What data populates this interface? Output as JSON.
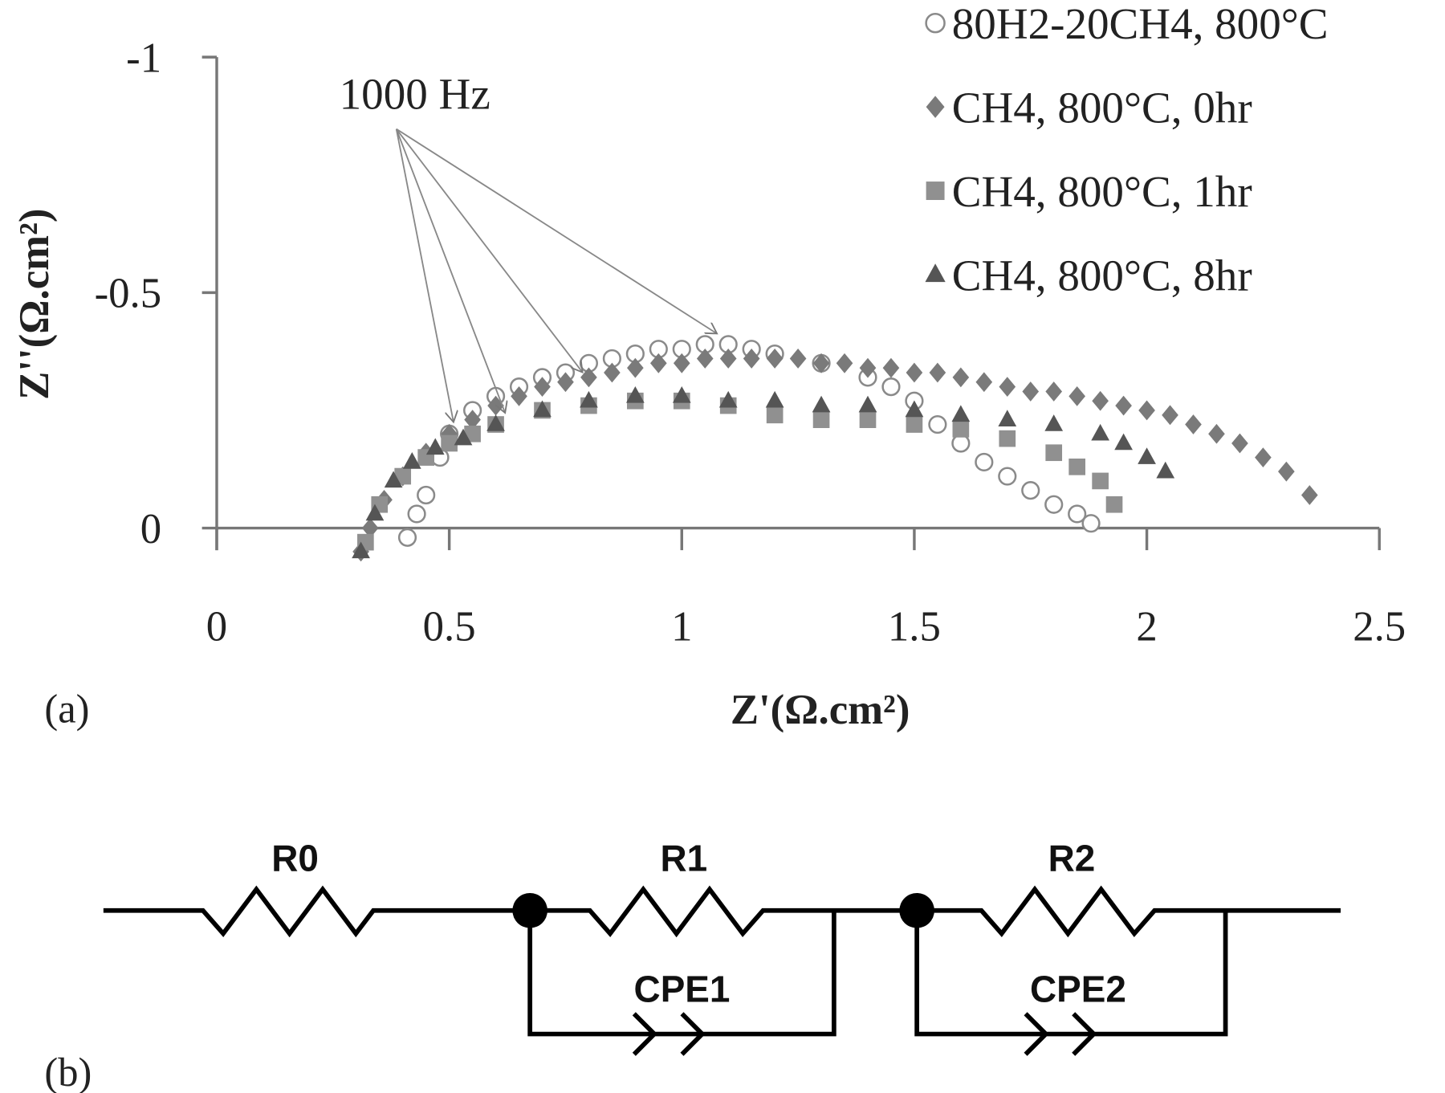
{
  "chart_data": {
    "type": "scatter",
    "x_label": "Z'(Ω.cm²)",
    "y_label": "Z''(Ω.cm²)",
    "panel_label": "(a)",
    "annotation": "1000 Hz",
    "xlim": [
      0,
      2.5
    ],
    "xticks": [
      0,
      0.5,
      1,
      1.5,
      2,
      2.5
    ],
    "ylim": [
      0,
      -1
    ],
    "yticks": [
      0,
      -0.5,
      -1
    ],
    "legend": "top-right",
    "series": [
      {
        "name": "80H2-20CH4, 800°C",
        "color": "#8a8a8a",
        "marker": "open-circle",
        "x": [
          0.41,
          0.43,
          0.45,
          0.48,
          0.5,
          0.55,
          0.6,
          0.65,
          0.7,
          0.75,
          0.8,
          0.85,
          0.9,
          0.95,
          1.0,
          1.05,
          1.1,
          1.15,
          1.2,
          1.3,
          1.4,
          1.45,
          1.5,
          1.55,
          1.6,
          1.65,
          1.7,
          1.75,
          1.8,
          1.85,
          1.88
        ],
        "values": [
          0.02,
          -0.03,
          -0.07,
          -0.15,
          -0.2,
          -0.25,
          -0.28,
          -0.3,
          -0.32,
          -0.33,
          -0.35,
          -0.36,
          -0.37,
          -0.38,
          -0.38,
          -0.39,
          -0.39,
          -0.38,
          -0.37,
          -0.35,
          -0.32,
          -0.3,
          -0.27,
          -0.22,
          -0.18,
          -0.14,
          -0.11,
          -0.08,
          -0.05,
          -0.03,
          -0.01
        ]
      },
      {
        "name": "CH4, 800°C, 0hr",
        "color": "#7a7a7a",
        "marker": "diamond",
        "x": [
          0.31,
          0.33,
          0.36,
          0.4,
          0.45,
          0.5,
          0.55,
          0.6,
          0.65,
          0.7,
          0.75,
          0.8,
          0.85,
          0.9,
          0.95,
          1.0,
          1.05,
          1.1,
          1.15,
          1.2,
          1.25,
          1.3,
          1.35,
          1.4,
          1.45,
          1.5,
          1.55,
          1.6,
          1.65,
          1.7,
          1.75,
          1.8,
          1.85,
          1.9,
          1.95,
          2.0,
          2.05,
          2.1,
          2.15,
          2.2,
          2.25,
          2.3,
          2.35
        ],
        "values": [
          0.05,
          0,
          -0.06,
          -0.11,
          -0.16,
          -0.2,
          -0.23,
          -0.26,
          -0.28,
          -0.3,
          -0.31,
          -0.32,
          -0.33,
          -0.34,
          -0.35,
          -0.35,
          -0.36,
          -0.36,
          -0.36,
          -0.36,
          -0.36,
          -0.35,
          -0.35,
          -0.34,
          -0.34,
          -0.33,
          -0.33,
          -0.32,
          -0.31,
          -0.3,
          -0.29,
          -0.29,
          -0.28,
          -0.27,
          -0.26,
          -0.25,
          -0.24,
          -0.22,
          -0.2,
          -0.18,
          -0.15,
          -0.12,
          -0.07
        ]
      },
      {
        "name": "CH4, 800°C, 1hr",
        "color": "#909090",
        "marker": "square",
        "x": [
          0.32,
          0.35,
          0.4,
          0.45,
          0.5,
          0.55,
          0.6,
          0.7,
          0.8,
          0.9,
          1.0,
          1.1,
          1.2,
          1.3,
          1.4,
          1.5,
          1.6,
          1.7,
          1.8,
          1.85,
          1.9,
          1.93
        ],
        "values": [
          0.03,
          -0.05,
          -0.11,
          -0.15,
          -0.18,
          -0.2,
          -0.22,
          -0.25,
          -0.26,
          -0.27,
          -0.27,
          -0.26,
          -0.24,
          -0.23,
          -0.23,
          -0.22,
          -0.21,
          -0.19,
          -0.16,
          -0.13,
          -0.1,
          -0.05
        ]
      },
      {
        "name": "CH4, 800°C, 8hr",
        "color": "#555555",
        "marker": "triangle",
        "x": [
          0.31,
          0.34,
          0.38,
          0.42,
          0.47,
          0.53,
          0.6,
          0.7,
          0.8,
          0.9,
          1.0,
          1.1,
          1.2,
          1.3,
          1.4,
          1.5,
          1.6,
          1.7,
          1.8,
          1.9,
          1.95,
          2.0,
          2.04
        ],
        "values": [
          0.05,
          -0.03,
          -0.1,
          -0.14,
          -0.17,
          -0.19,
          -0.22,
          -0.25,
          -0.27,
          -0.28,
          -0.28,
          -0.27,
          -0.27,
          -0.26,
          -0.26,
          -0.25,
          -0.24,
          -0.23,
          -0.22,
          -0.2,
          -0.18,
          -0.15,
          -0.12
        ]
      }
    ]
  },
  "circuit": {
    "panel_label": "(b)",
    "elements": {
      "r0": "R0",
      "r1": "R1",
      "r2": "R2",
      "cpe1": "CPE1",
      "cpe2": "CPE2"
    }
  }
}
